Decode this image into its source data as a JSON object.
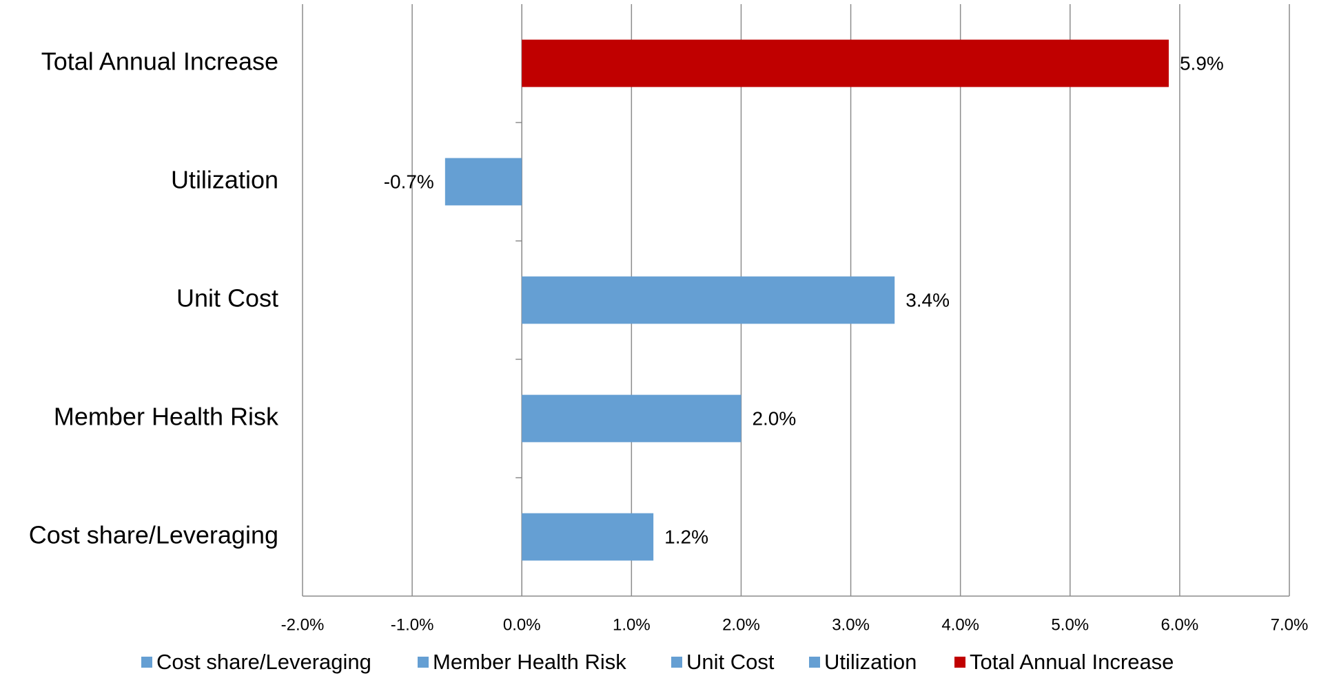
{
  "chart_data": {
    "type": "hbar",
    "categories": [
      "Cost share/Leveraging",
      "Member Health Risk",
      "Unit Cost",
      "Utilization",
      "Total Annual Increase"
    ],
    "values": [
      1.2,
      2.0,
      3.4,
      -0.7,
      5.9
    ],
    "value_labels": [
      "1.2%",
      "2.0%",
      "3.4%",
      "-0.7%",
      "5.9%"
    ],
    "colors": [
      "#659fd3",
      "#659fd3",
      "#659fd3",
      "#659fd3",
      "#c00000"
    ],
    "xlim": [
      -2,
      7
    ],
    "xticks": [
      {
        "value": -2,
        "label": "-2.0%"
      },
      {
        "value": -1,
        "label": "-1.0%"
      },
      {
        "value": 0,
        "label": "0.0%"
      },
      {
        "value": 1,
        "label": "1.0%"
      },
      {
        "value": 2,
        "label": "2.0%"
      },
      {
        "value": 3,
        "label": "3.0%"
      },
      {
        "value": 4,
        "label": "4.0%"
      },
      {
        "value": 5,
        "label": "5.0%"
      },
      {
        "value": 6,
        "label": "6.0%"
      },
      {
        "value": 7,
        "label": "7.0%"
      }
    ],
    "grid": true,
    "legend": "bottom"
  }
}
